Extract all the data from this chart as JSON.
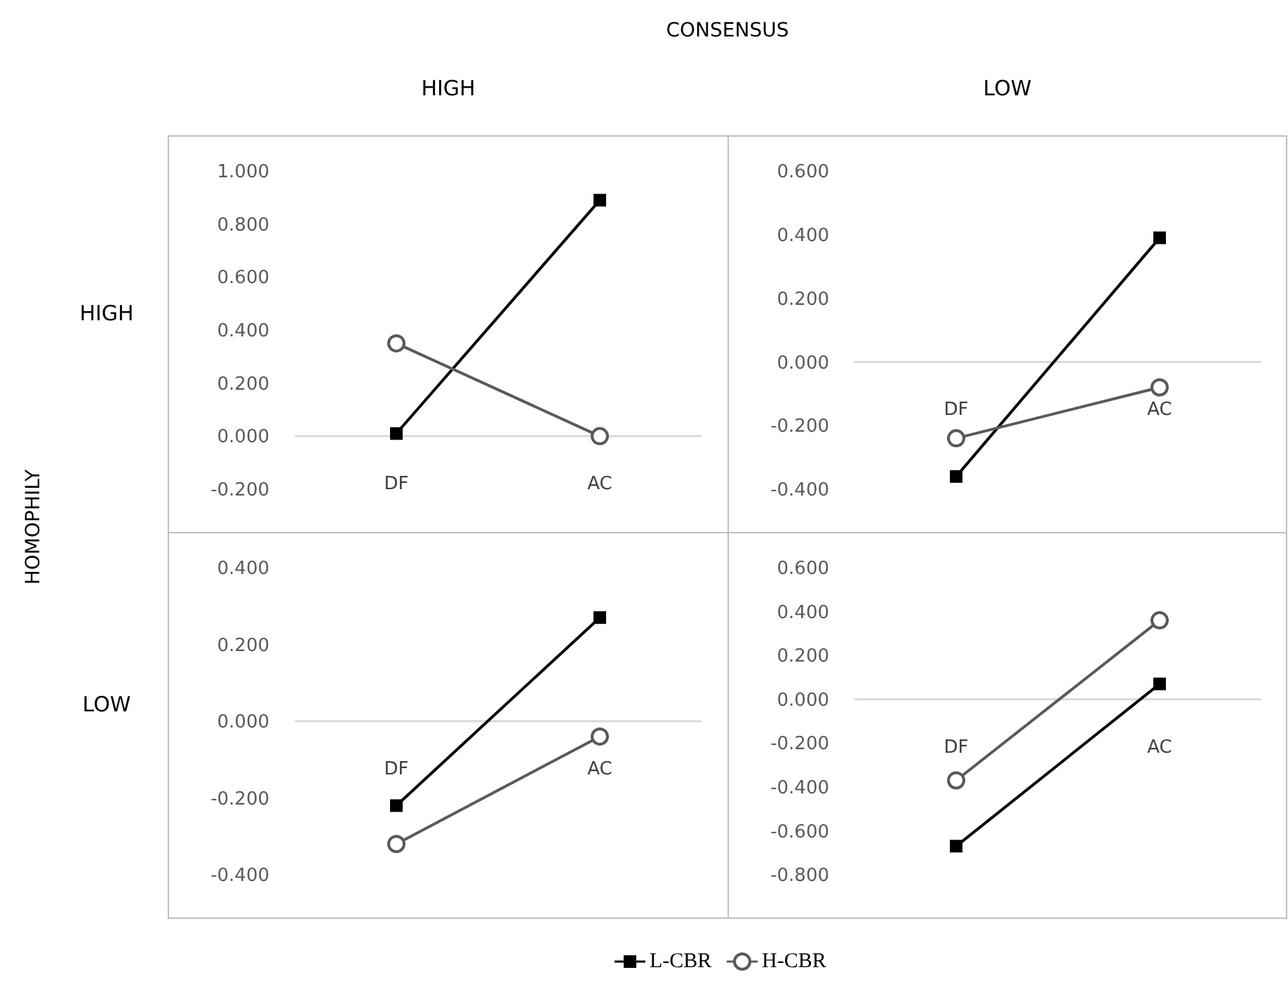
{
  "chart_data": [
    {
      "type": "line",
      "title": "HIGH",
      "ylabel": "HIGH",
      "annotations": [
        "CONSENSUS",
        "HOMOPHILY"
      ],
      "categories": [
        "DF",
        "AC"
      ],
      "ylim": [
        -0.2,
        1.0
      ],
      "yticks": [
        {
          "value": -0.2,
          "label": "-0.200"
        },
        {
          "value": 0,
          "label": "0.000"
        },
        {
          "value": 0.2,
          "label": "0.200"
        },
        {
          "value": 0.4,
          "label": "0.400"
        },
        {
          "value": 0.6,
          "label": "0.600"
        },
        {
          "value": 0.8,
          "label": "0.800"
        },
        {
          "value": 1.0,
          "label": "1.000"
        }
      ],
      "grid": false,
      "legend": false,
      "series": [
        {
          "color": "#000000",
          "marker": "square",
          "values": [
            0.01,
            0.89
          ]
        },
        {
          "color": "#595959",
          "marker": "circle",
          "values": [
            0.35,
            0.0
          ]
        }
      ]
    },
    {
      "type": "line",
      "title": "LOW",
      "categories": [
        "DF",
        "AC"
      ],
      "ylim": [
        -0.4,
        0.6
      ],
      "yticks": [
        {
          "value": -0.4,
          "label": "-0.400"
        },
        {
          "value": -0.2,
          "label": "-0.200"
        },
        {
          "value": 0,
          "label": "0.000"
        },
        {
          "value": 0.2,
          "label": "0.200"
        },
        {
          "value": 0.4,
          "label": "0.400"
        },
        {
          "value": 0.6,
          "label": "0.600"
        }
      ],
      "grid": false,
      "legend": false,
      "series": [
        {
          "color": "#000000",
          "marker": "square",
          "values": [
            -0.36,
            0.39
          ]
        },
        {
          "color": "#595959",
          "marker": "circle",
          "values": [
            -0.24,
            -0.08
          ]
        }
      ]
    },
    {
      "type": "line",
      "ylabel": "LOW",
      "categories": [
        "DF",
        "AC"
      ],
      "ylim": [
        -0.4,
        0.4
      ],
      "yticks": [
        {
          "value": -0.4,
          "label": "-0.400"
        },
        {
          "value": -0.2,
          "label": "-0.200"
        },
        {
          "value": 0,
          "label": "0.000"
        },
        {
          "value": 0.2,
          "label": "0.200"
        },
        {
          "value": 0.4,
          "label": "0.400"
        }
      ],
      "grid": false,
      "legend": false,
      "series": [
        {
          "color": "#000000",
          "marker": "square",
          "values": [
            -0.22,
            0.27
          ]
        },
        {
          "color": "#595959",
          "marker": "circle",
          "values": [
            -0.32,
            -0.04
          ]
        }
      ]
    },
    {
      "type": "line",
      "categories": [
        "DF",
        "AC"
      ],
      "ylim": [
        -0.8,
        0.6
      ],
      "yticks": [
        {
          "value": -0.8,
          "label": "-0.800"
        },
        {
          "value": -0.6,
          "label": "-0.600"
        },
        {
          "value": -0.4,
          "label": "-0.400"
        },
        {
          "value": -0.2,
          "label": "-0.200"
        },
        {
          "value": 0,
          "label": "0.000"
        },
        {
          "value": 0.2,
          "label": "0.200"
        },
        {
          "value": 0.4,
          "label": "0.400"
        },
        {
          "value": 0.6,
          "label": "0.600"
        }
      ],
      "grid": false,
      "legend": "bottom",
      "series": [
        {
          "name": "L-CBR",
          "color": "#000000",
          "marker": "square",
          "values": [
            -0.67,
            0.07
          ]
        },
        {
          "name": "H-CBR",
          "color": "#595959",
          "marker": "circle",
          "values": [
            -0.37,
            0.36
          ]
        }
      ]
    }
  ]
}
